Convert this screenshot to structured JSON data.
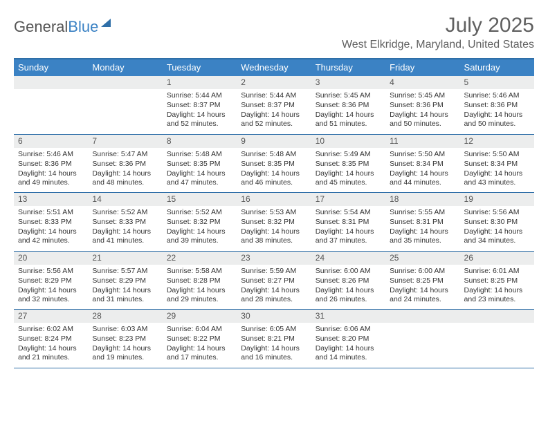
{
  "logo": {
    "part1": "General",
    "part2": "Blue"
  },
  "title": "July 2025",
  "location": "West Elkridge, Maryland, United States",
  "colors": {
    "header_bg": "#3b82c4",
    "border": "#2f6fa8",
    "daynum_bg": "#eceded",
    "text": "#333333",
    "title_text": "#606060"
  },
  "daysOfWeek": [
    "Sunday",
    "Monday",
    "Tuesday",
    "Wednesday",
    "Thursday",
    "Friday",
    "Saturday"
  ],
  "weeks": [
    [
      {
        "n": "",
        "sr": "",
        "ss": "",
        "dl": ""
      },
      {
        "n": "",
        "sr": "",
        "ss": "",
        "dl": ""
      },
      {
        "n": "1",
        "sr": "Sunrise: 5:44 AM",
        "ss": "Sunset: 8:37 PM",
        "dl": "Daylight: 14 hours and 52 minutes."
      },
      {
        "n": "2",
        "sr": "Sunrise: 5:44 AM",
        "ss": "Sunset: 8:37 PM",
        "dl": "Daylight: 14 hours and 52 minutes."
      },
      {
        "n": "3",
        "sr": "Sunrise: 5:45 AM",
        "ss": "Sunset: 8:36 PM",
        "dl": "Daylight: 14 hours and 51 minutes."
      },
      {
        "n": "4",
        "sr": "Sunrise: 5:45 AM",
        "ss": "Sunset: 8:36 PM",
        "dl": "Daylight: 14 hours and 50 minutes."
      },
      {
        "n": "5",
        "sr": "Sunrise: 5:46 AM",
        "ss": "Sunset: 8:36 PM",
        "dl": "Daylight: 14 hours and 50 minutes."
      }
    ],
    [
      {
        "n": "6",
        "sr": "Sunrise: 5:46 AM",
        "ss": "Sunset: 8:36 PM",
        "dl": "Daylight: 14 hours and 49 minutes."
      },
      {
        "n": "7",
        "sr": "Sunrise: 5:47 AM",
        "ss": "Sunset: 8:36 PM",
        "dl": "Daylight: 14 hours and 48 minutes."
      },
      {
        "n": "8",
        "sr": "Sunrise: 5:48 AM",
        "ss": "Sunset: 8:35 PM",
        "dl": "Daylight: 14 hours and 47 minutes."
      },
      {
        "n": "9",
        "sr": "Sunrise: 5:48 AM",
        "ss": "Sunset: 8:35 PM",
        "dl": "Daylight: 14 hours and 46 minutes."
      },
      {
        "n": "10",
        "sr": "Sunrise: 5:49 AM",
        "ss": "Sunset: 8:35 PM",
        "dl": "Daylight: 14 hours and 45 minutes."
      },
      {
        "n": "11",
        "sr": "Sunrise: 5:50 AM",
        "ss": "Sunset: 8:34 PM",
        "dl": "Daylight: 14 hours and 44 minutes."
      },
      {
        "n": "12",
        "sr": "Sunrise: 5:50 AM",
        "ss": "Sunset: 8:34 PM",
        "dl": "Daylight: 14 hours and 43 minutes."
      }
    ],
    [
      {
        "n": "13",
        "sr": "Sunrise: 5:51 AM",
        "ss": "Sunset: 8:33 PM",
        "dl": "Daylight: 14 hours and 42 minutes."
      },
      {
        "n": "14",
        "sr": "Sunrise: 5:52 AM",
        "ss": "Sunset: 8:33 PM",
        "dl": "Daylight: 14 hours and 41 minutes."
      },
      {
        "n": "15",
        "sr": "Sunrise: 5:52 AM",
        "ss": "Sunset: 8:32 PM",
        "dl": "Daylight: 14 hours and 39 minutes."
      },
      {
        "n": "16",
        "sr": "Sunrise: 5:53 AM",
        "ss": "Sunset: 8:32 PM",
        "dl": "Daylight: 14 hours and 38 minutes."
      },
      {
        "n": "17",
        "sr": "Sunrise: 5:54 AM",
        "ss": "Sunset: 8:31 PM",
        "dl": "Daylight: 14 hours and 37 minutes."
      },
      {
        "n": "18",
        "sr": "Sunrise: 5:55 AM",
        "ss": "Sunset: 8:31 PM",
        "dl": "Daylight: 14 hours and 35 minutes."
      },
      {
        "n": "19",
        "sr": "Sunrise: 5:56 AM",
        "ss": "Sunset: 8:30 PM",
        "dl": "Daylight: 14 hours and 34 minutes."
      }
    ],
    [
      {
        "n": "20",
        "sr": "Sunrise: 5:56 AM",
        "ss": "Sunset: 8:29 PM",
        "dl": "Daylight: 14 hours and 32 minutes."
      },
      {
        "n": "21",
        "sr": "Sunrise: 5:57 AM",
        "ss": "Sunset: 8:29 PM",
        "dl": "Daylight: 14 hours and 31 minutes."
      },
      {
        "n": "22",
        "sr": "Sunrise: 5:58 AM",
        "ss": "Sunset: 8:28 PM",
        "dl": "Daylight: 14 hours and 29 minutes."
      },
      {
        "n": "23",
        "sr": "Sunrise: 5:59 AM",
        "ss": "Sunset: 8:27 PM",
        "dl": "Daylight: 14 hours and 28 minutes."
      },
      {
        "n": "24",
        "sr": "Sunrise: 6:00 AM",
        "ss": "Sunset: 8:26 PM",
        "dl": "Daylight: 14 hours and 26 minutes."
      },
      {
        "n": "25",
        "sr": "Sunrise: 6:00 AM",
        "ss": "Sunset: 8:25 PM",
        "dl": "Daylight: 14 hours and 24 minutes."
      },
      {
        "n": "26",
        "sr": "Sunrise: 6:01 AM",
        "ss": "Sunset: 8:25 PM",
        "dl": "Daylight: 14 hours and 23 minutes."
      }
    ],
    [
      {
        "n": "27",
        "sr": "Sunrise: 6:02 AM",
        "ss": "Sunset: 8:24 PM",
        "dl": "Daylight: 14 hours and 21 minutes."
      },
      {
        "n": "28",
        "sr": "Sunrise: 6:03 AM",
        "ss": "Sunset: 8:23 PM",
        "dl": "Daylight: 14 hours and 19 minutes."
      },
      {
        "n": "29",
        "sr": "Sunrise: 6:04 AM",
        "ss": "Sunset: 8:22 PM",
        "dl": "Daylight: 14 hours and 17 minutes."
      },
      {
        "n": "30",
        "sr": "Sunrise: 6:05 AM",
        "ss": "Sunset: 8:21 PM",
        "dl": "Daylight: 14 hours and 16 minutes."
      },
      {
        "n": "31",
        "sr": "Sunrise: 6:06 AM",
        "ss": "Sunset: 8:20 PM",
        "dl": "Daylight: 14 hours and 14 minutes."
      },
      {
        "n": "",
        "sr": "",
        "ss": "",
        "dl": ""
      },
      {
        "n": "",
        "sr": "",
        "ss": "",
        "dl": ""
      }
    ]
  ]
}
